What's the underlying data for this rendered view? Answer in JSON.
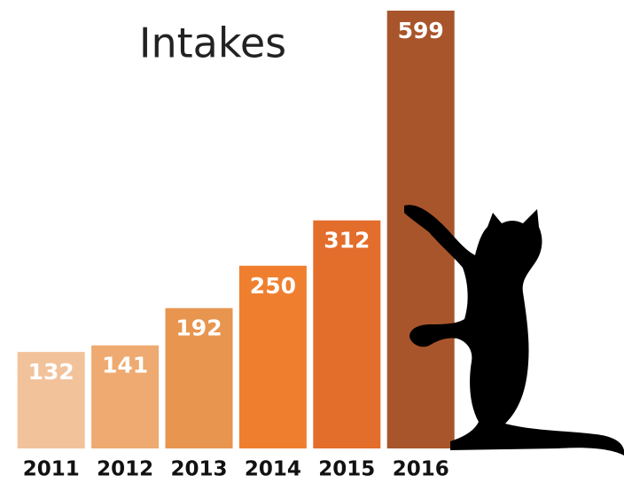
{
  "chart_data": {
    "type": "bar",
    "title": "Intakes",
    "categories": [
      "2011",
      "2012",
      "2013",
      "2014",
      "2015",
      "2016"
    ],
    "values": [
      132,
      141,
      192,
      250,
      312,
      599
    ],
    "colors": [
      "#f2c29b",
      "#eeaa70",
      "#e8954f",
      "#ef7f2f",
      "#e36d2b",
      "#a9552b"
    ],
    "ylim": [
      0,
      599
    ]
  }
}
